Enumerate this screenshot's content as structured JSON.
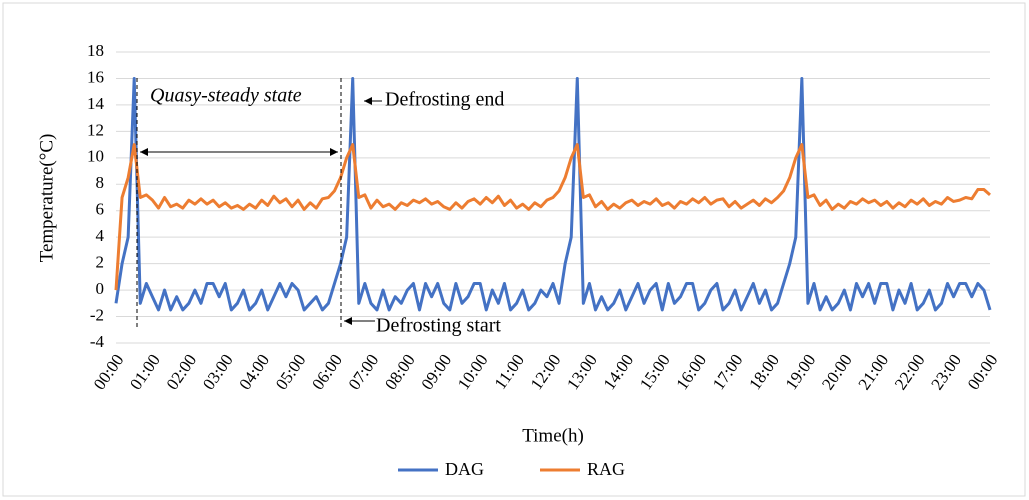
{
  "chart_data": {
    "type": "line",
    "xlabel": "Time(h)",
    "ylabel": "Temperature(°C)",
    "categories": [
      "00:00",
      null,
      null,
      null,
      null,
      null,
      "01:00",
      null,
      null,
      null,
      null,
      null,
      "02:00",
      null,
      null,
      null,
      null,
      null,
      "03:00",
      null,
      null,
      null,
      null,
      null,
      "04:00",
      null,
      null,
      null,
      null,
      null,
      "05:00",
      null,
      null,
      null,
      null,
      null,
      "06:00",
      null,
      null,
      null,
      null,
      null,
      "07:00",
      null,
      null,
      null,
      null,
      null,
      "08:00",
      null,
      null,
      null,
      null,
      null,
      "09:00",
      null,
      null,
      null,
      null,
      null,
      "10:00",
      null,
      null,
      null,
      null,
      null,
      "11:00",
      null,
      null,
      null,
      null,
      null,
      "12:00",
      null,
      null,
      null,
      null,
      null,
      "13:00",
      null,
      null,
      null,
      null,
      null,
      "14:00",
      null,
      null,
      null,
      null,
      null,
      "15:00",
      null,
      null,
      null,
      null,
      null,
      "16:00",
      null,
      null,
      null,
      null,
      null,
      "17:00",
      null,
      null,
      null,
      null,
      null,
      "18:00",
      null,
      null,
      null,
      null,
      null,
      "19:00",
      null,
      null,
      null,
      null,
      null,
      "20:00",
      null,
      null,
      null,
      null,
      null,
      "21:00",
      null,
      null,
      null,
      null,
      null,
      "22:00",
      null,
      null,
      null,
      null,
      null,
      "23:00",
      null,
      null,
      null,
      null,
      null,
      "00:00"
    ],
    "series": [
      {
        "name": "DAG",
        "color": "#4472c4",
        "values": [
          -1,
          2,
          4,
          16,
          -1,
          0.5,
          -0.5,
          -1.5,
          0,
          -1.5,
          -0.5,
          -1.5,
          -1,
          0,
          -1,
          0.5,
          0.5,
          -0.5,
          0.5,
          -1.5,
          -1,
          0,
          -1.5,
          -1,
          0,
          -1.5,
          -0.5,
          0.5,
          -0.5,
          0.5,
          0,
          -1.5,
          -1,
          -0.5,
          -1.5,
          -1,
          0.5,
          2,
          4,
          16,
          -1,
          0.5,
          -1,
          -1.5,
          0,
          -1.5,
          -0.5,
          -1,
          0,
          0.5,
          -1.5,
          0.5,
          -0.5,
          0.5,
          -1,
          -1.5,
          0.5,
          -1,
          -0.5,
          0.5,
          0.5,
          -1.5,
          0,
          -1,
          0.5,
          -1.5,
          -1,
          0,
          -1.5,
          -1,
          0,
          -0.5,
          0.5,
          -1,
          2,
          4,
          16,
          -1,
          0.5,
          -1.5,
          -0.5,
          -1.5,
          -1,
          0,
          -1.5,
          -0.5,
          0.5,
          -1,
          0,
          0.5,
          -1.5,
          0.5,
          -1,
          -0.5,
          0.5,
          0.5,
          -1.5,
          -1,
          0,
          0.5,
          -1.5,
          -1,
          0,
          -1.5,
          -0.5,
          0.5,
          -1,
          0,
          -1.5,
          -1,
          0.5,
          2,
          4,
          16,
          -1,
          0.5,
          -1.5,
          -0.5,
          -1.5,
          -1,
          0,
          -1.5,
          0.5,
          -0.5,
          0.5,
          -1,
          0.5,
          0.5,
          -1.5,
          0,
          -1,
          0.5,
          -1.5,
          -1,
          0,
          -1.5,
          -1,
          0.5,
          -0.5,
          0.5,
          0.5,
          -0.5,
          0.5,
          0,
          -1.5
        ]
      },
      {
        "name": "RAG",
        "color": "#ed7d31",
        "values": [
          0,
          7,
          8.5,
          11,
          7,
          7.2,
          6.8,
          6.2,
          7,
          6.3,
          6.5,
          6.2,
          6.8,
          6.5,
          6.9,
          6.5,
          6.8,
          6.3,
          6.6,
          6.2,
          6.4,
          6.1,
          6.5,
          6.2,
          6.8,
          6.4,
          7.1,
          6.6,
          6.9,
          6.3,
          6.8,
          6.1,
          6.6,
          6.2,
          6.9,
          7,
          7.5,
          8.5,
          10,
          11,
          7,
          7.2,
          6.2,
          6.8,
          6.3,
          6.5,
          6.1,
          6.6,
          6.4,
          6.8,
          6.6,
          6.9,
          6.5,
          6.7,
          6.3,
          6.1,
          6.6,
          6.2,
          6.7,
          6.9,
          6.5,
          7,
          6.6,
          7.1,
          6.4,
          6.8,
          6.2,
          6.5,
          6.1,
          6.6,
          6.3,
          6.8,
          7,
          7.5,
          8.5,
          10,
          11,
          7,
          7.2,
          6.3,
          6.7,
          6.1,
          6.5,
          6.2,
          6.6,
          6.8,
          6.4,
          6.7,
          6.5,
          6.9,
          6.4,
          6.6,
          6.2,
          6.7,
          6.5,
          6.9,
          6.6,
          7,
          6.5,
          6.8,
          6.9,
          6.3,
          6.7,
          6.2,
          6.5,
          6.8,
          6.4,
          6.9,
          6.6,
          7,
          7.5,
          8.5,
          10,
          11,
          7,
          7.2,
          6.4,
          6.8,
          6.1,
          6.5,
          6.2,
          6.7,
          6.5,
          6.9,
          6.6,
          6.8,
          6.4,
          6.7,
          6.2,
          6.6,
          6.3,
          6.8,
          6.5,
          6.9,
          6.4,
          6.7,
          6.5,
          7,
          6.7,
          6.8,
          7,
          6.9,
          7.6,
          7.6,
          7.2
        ]
      }
    ],
    "ylim": [
      -4,
      18
    ],
    "yticks": [
      -4,
      -2,
      0,
      2,
      4,
      6,
      8,
      10,
      12,
      14,
      16,
      18
    ],
    "grid": true,
    "legend": "bottom",
    "annotations": [
      "Quasy-steady state",
      "Defrosting end",
      "Defrosting start"
    ]
  }
}
